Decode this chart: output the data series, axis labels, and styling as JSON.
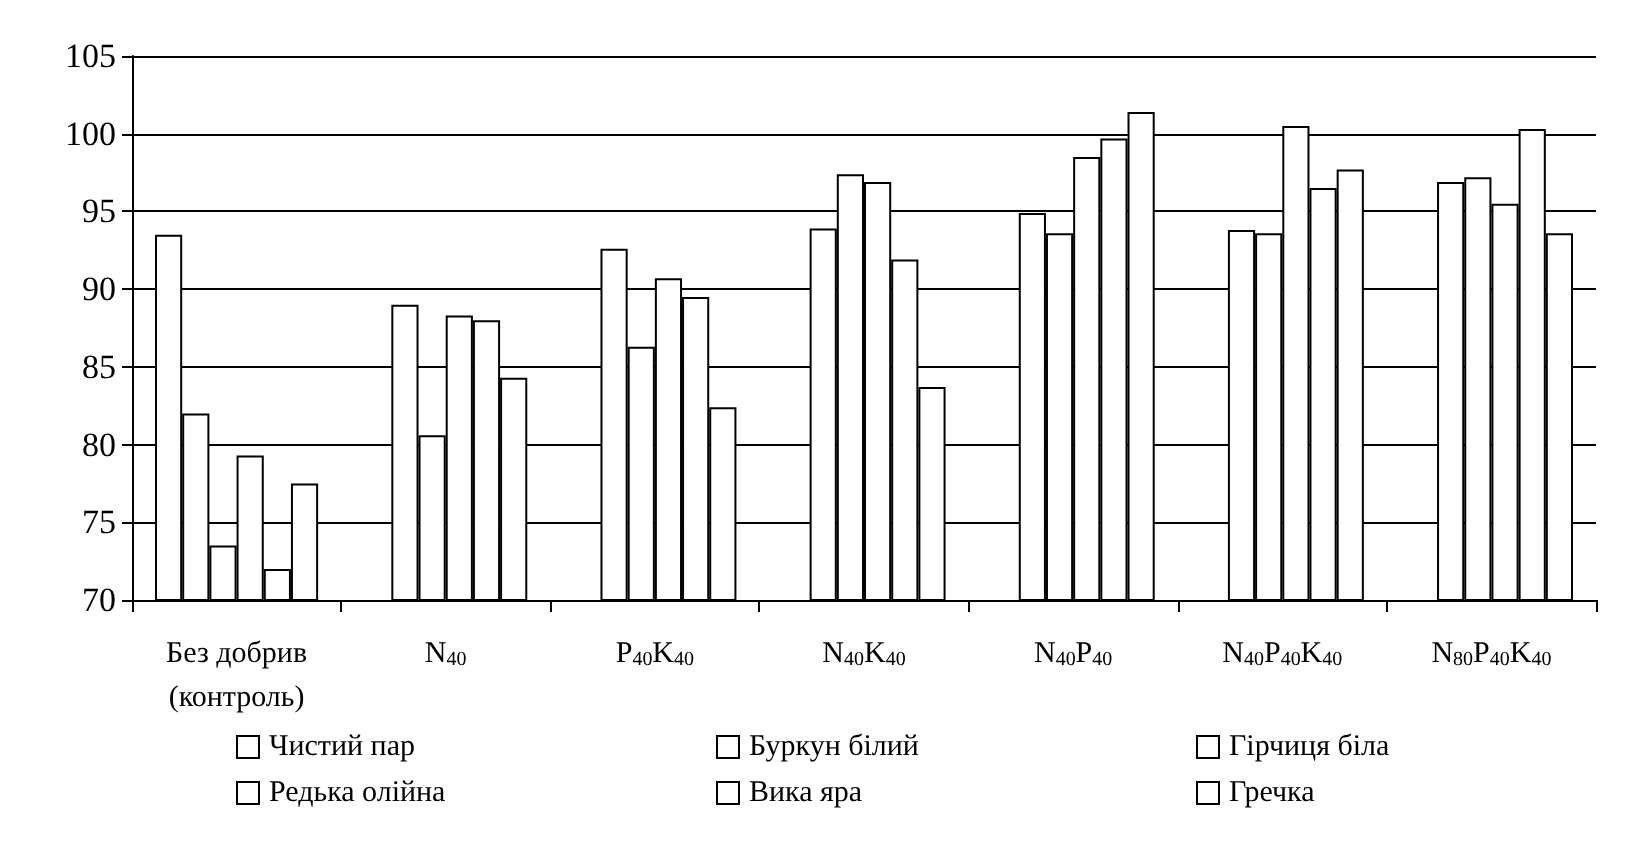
{
  "chart_data": {
    "type": "bar",
    "categories": [
      "Без добрив\n(контроль)",
      "N$_{40}$",
      "P$_{40}$K$_{40}$",
      "N$_{40}$K$_{40}$",
      "N$_{40}$P$_{40}$",
      "N$_{40}$P$_{40}$K$_{40}$",
      "N$_{80}$P$_{40}$K$_{40}$"
    ],
    "series": [
      {
        "name": "Чистий пар",
        "color": "#ffffff",
        "values": [
          93.5,
          null,
          null,
          null,
          null,
          null,
          null
        ]
      },
      {
        "name": "Буркун білий",
        "color": "#ffffff",
        "values": [
          82.0,
          89.0,
          92.6,
          93.9,
          94.9,
          93.8,
          96.9
        ]
      },
      {
        "name": "Гірчиця біла",
        "color": "#ffffff",
        "values": [
          73.5,
          80.6,
          86.3,
          97.4,
          93.6,
          93.6,
          97.2
        ]
      },
      {
        "name": "Редька олійна",
        "color": "#ffffff",
        "values": [
          79.3,
          88.3,
          90.7,
          96.9,
          98.5,
          100.5,
          95.5
        ]
      },
      {
        "name": "Вика яра",
        "color": "#ffffff",
        "values": [
          72.0,
          88.0,
          89.5,
          91.9,
          99.7,
          96.5,
          100.3
        ]
      },
      {
        "name": "Гречка",
        "color": "#ffffff",
        "values": [
          77.5,
          84.3,
          82.4,
          83.7,
          101.4,
          97.7,
          93.6
        ]
      }
    ],
    "ylim": [
      70,
      105
    ],
    "yticks": [
      70,
      75,
      80,
      85,
      90,
      95,
      100,
      105
    ],
    "grid": "y",
    "legend": "bottom"
  }
}
